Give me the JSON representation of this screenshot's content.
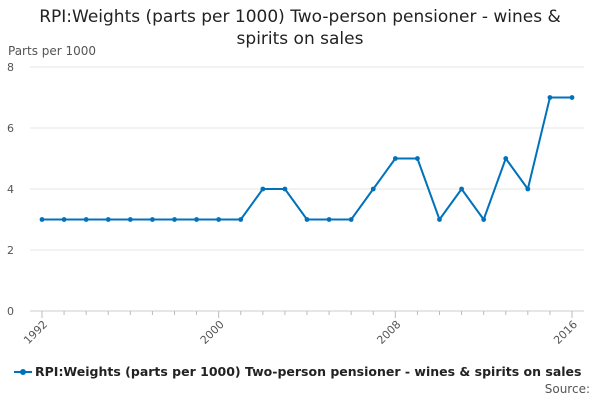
{
  "chart_data": {
    "type": "line",
    "title": "RPI:Weights (parts per 1000) Two-person pensioner - wines & spirits on sales",
    "ylabel": "Parts per 1000",
    "xlabel": "",
    "ylim": [
      0,
      8
    ],
    "yticks": [
      "0",
      "2",
      "4",
      "6",
      "8"
    ],
    "xlim": [
      1992,
      2016
    ],
    "xticks": [
      "1992",
      "2000",
      "2008",
      "2016"
    ],
    "grid": true,
    "legend_position": "bottom",
    "series": [
      {
        "name": "RPI:Weights (parts per 1000) Two-person pensioner - wines & spirits on sales",
        "color": "#0072bc",
        "x": [
          1992,
          1993,
          1994,
          1995,
          1996,
          1997,
          1998,
          1999,
          2000,
          2001,
          2002,
          2003,
          2004,
          2005,
          2006,
          2007,
          2008,
          2009,
          2010,
          2011,
          2012,
          2013,
          2014,
          2015,
          2016
        ],
        "values": [
          3,
          3,
          3,
          3,
          3,
          3,
          3,
          3,
          3,
          3,
          4,
          4,
          3,
          3,
          3,
          4,
          5,
          5,
          3,
          4,
          3,
          5,
          4,
          7,
          7
        ]
      }
    ],
    "source_label": "Source:"
  }
}
